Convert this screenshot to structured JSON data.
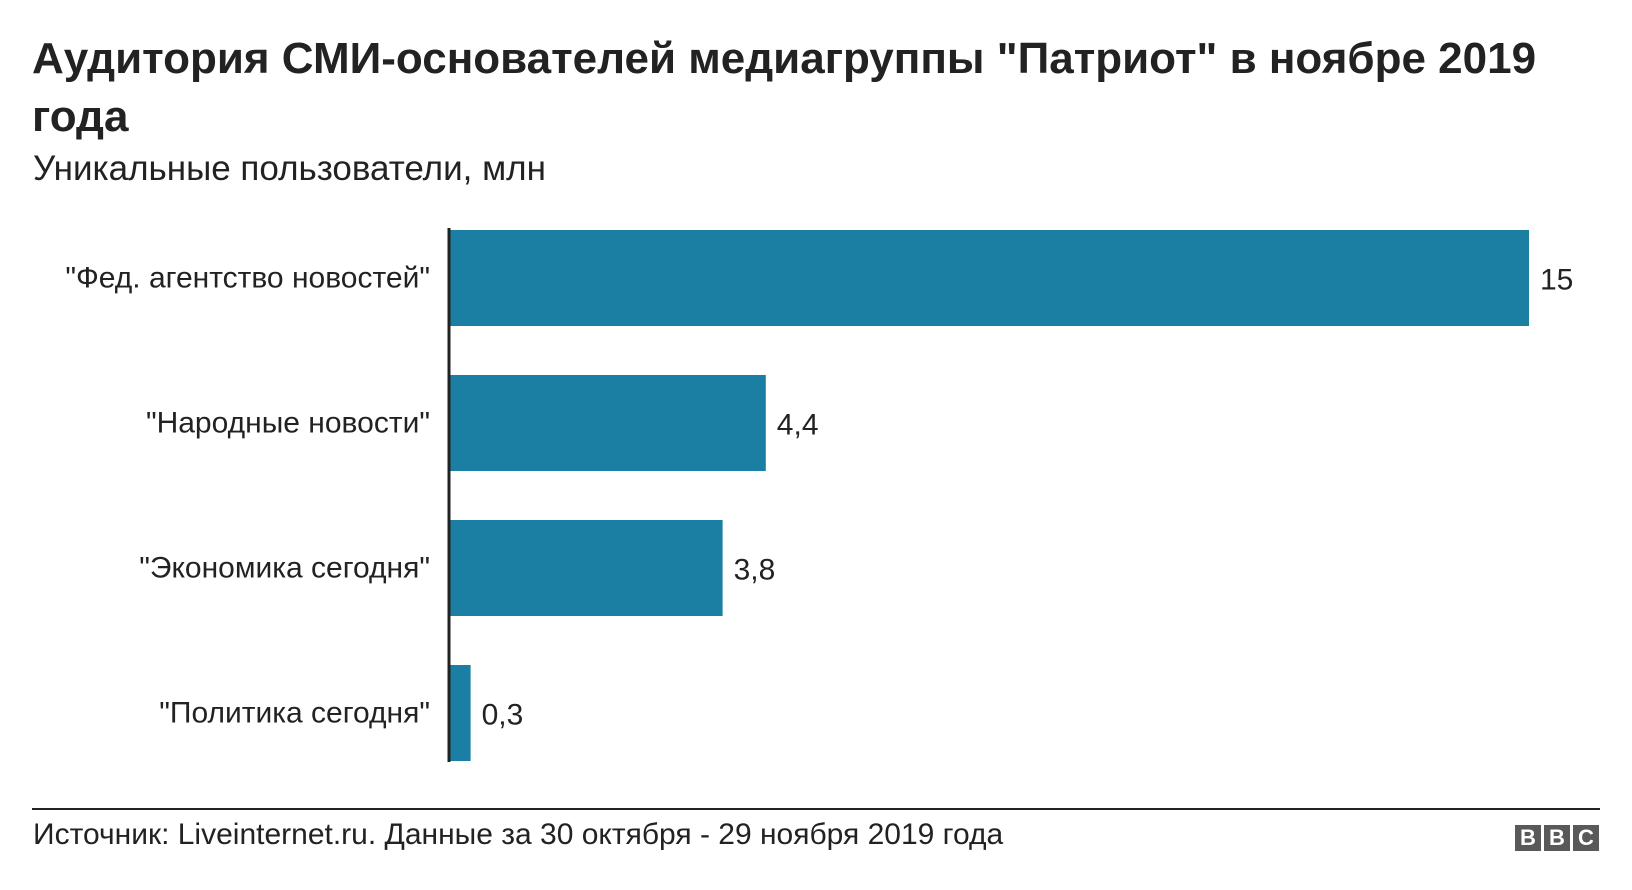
{
  "title": "Аудитория СМИ-основателей медиагруппы \"Патриот\" в ноябре 2019 года",
  "subtitle": "Уникальные пользователи, млн",
  "source": "Источник: Liveinternet.ru. Данные за 30 октября - 29 ноября 2019 года",
  "logo": {
    "letters": [
      "B",
      "B",
      "C"
    ]
  },
  "colors": {
    "bar": "#1a7fa3",
    "axis": "#222222",
    "text": "#222222"
  },
  "chart_data": {
    "type": "bar",
    "orientation": "horizontal",
    "categories": [
      "\"Фед. агентство новостей\"",
      "\"Народные новости\"",
      "\"Экономика сегодня\"",
      "\"Политика сегодня\""
    ],
    "values": [
      15,
      4.4,
      3.8,
      0.3
    ],
    "value_labels": [
      "15",
      "4,4",
      "3,8",
      "0,3"
    ],
    "xlim": [
      0,
      15
    ],
    "grid": false,
    "legend": "none"
  }
}
